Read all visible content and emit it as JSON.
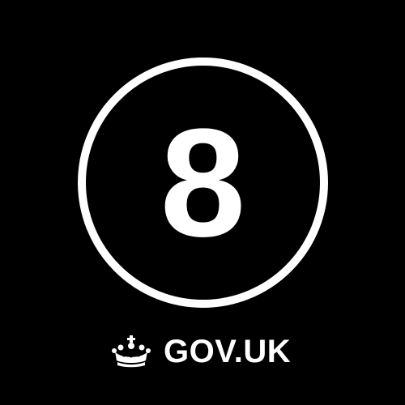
{
  "graphic": {
    "number": "8",
    "background_color": "#000000",
    "foreground_color": "#ffffff"
  },
  "brand": {
    "text": "GOV.UK",
    "icon": "crown-icon"
  }
}
